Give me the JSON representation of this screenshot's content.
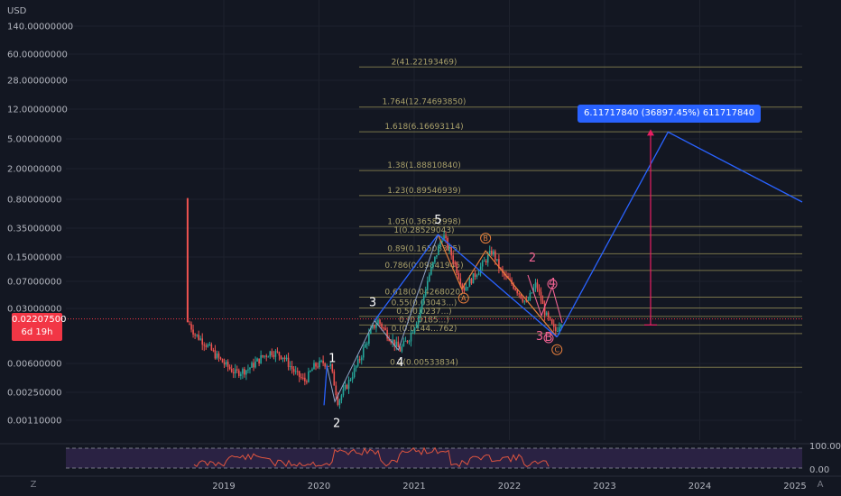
{
  "currency": "USD",
  "price_tag": {
    "price": "0.02207500",
    "countdown": "6d 19h"
  },
  "projection_box": "6.11717840 (36897.45%) 611717840",
  "rsi_levels": [
    "100.00",
    "0.00"
  ],
  "corner_buttons": {
    "left": "Z",
    "right": "A"
  },
  "colors": {
    "background": "#131722",
    "up_candle": "#26a69a",
    "down_candle": "#ef5350",
    "wave_line": "#2962ff",
    "fib_line": "#8a8450",
    "corrective_line": "#e67e3c",
    "pink_label": "#f06292",
    "rsi_fill": "#3b2a5a",
    "rsi_line": "#e0553f"
  },
  "chart_data": {
    "type": "candlestick",
    "y_scale": "log",
    "y_ticks": [
      "140.00000000",
      "60.00000000",
      "28.00000000",
      "12.00000000",
      "5.00000000",
      "2.00000000",
      "0.80000000",
      "0.35000000",
      "0.15000000",
      "0.07000000",
      "0.03000000",
      "0.00600000",
      "0.00250000",
      "0.00110000"
    ],
    "x_ticks": [
      "2019",
      "2020",
      "2021",
      "2022",
      "2023",
      "2024",
      "2025"
    ],
    "fib_levels": [
      {
        "label": "2(41.22193469)",
        "value": 41.22
      },
      {
        "label": "1.764(12.74693850)",
        "value": 12.75
      },
      {
        "label": "1.618(6.16693114)",
        "value": 6.17
      },
      {
        "label": "1.38(1.88810840)",
        "value": 1.89
      },
      {
        "label": "1.23(0.89546939)",
        "value": 0.895
      },
      {
        "label": "1.05(0.36582998)",
        "value": 0.366
      },
      {
        "label": "1(0.28529043)",
        "value": 0.285
      },
      {
        "label": "0.89(0.16508385)",
        "value": 0.165
      },
      {
        "label": "0.786(0.09841945)",
        "value": 0.0984
      },
      {
        "label": "0.618(0.04268020)",
        "value": 0.0427
      },
      {
        "label": "0.55(0.03043...)",
        "value": 0.0304
      },
      {
        "label": "0.5(0.0237...)",
        "value": 0.0237
      },
      {
        "label": "0.(0.0185...)",
        "value": 0.0185
      },
      {
        "label": "0.(0.0144...762)",
        "value": 0.0144
      },
      {
        "label": "0.2(0.00533834)",
        "value": 0.00534
      }
    ],
    "impulse_waves": [
      {
        "label": "1",
        "date": "2020-02",
        "price": 0.0056
      },
      {
        "label": "2",
        "date": "2020-03",
        "price": 0.0019
      },
      {
        "label": "3",
        "date": "2020-08",
        "price": 0.021
      },
      {
        "label": "4",
        "date": "2020-11",
        "price": 0.0089
      },
      {
        "label": "5",
        "date": "2021-04",
        "price": 0.29
      }
    ],
    "corrective_waves": [
      {
        "label": "A",
        "date": "2021-07",
        "price": 0.055
      },
      {
        "label": "B",
        "date": "2021-10",
        "price": 0.18
      },
      {
        "label": "C",
        "date": "2022-07",
        "price": 0.013
      }
    ],
    "pink_waves": [
      {
        "label": "2",
        "date": "2022-03"
      },
      {
        "label": "3",
        "date": "2022-06"
      },
      {
        "label": "4",
        "date": "2022-05"
      },
      {
        "label": "B",
        "date": "2022-06"
      }
    ],
    "target": {
      "price": 6.1171784,
      "percent": "36897.45%",
      "date": "2023-09"
    }
  }
}
